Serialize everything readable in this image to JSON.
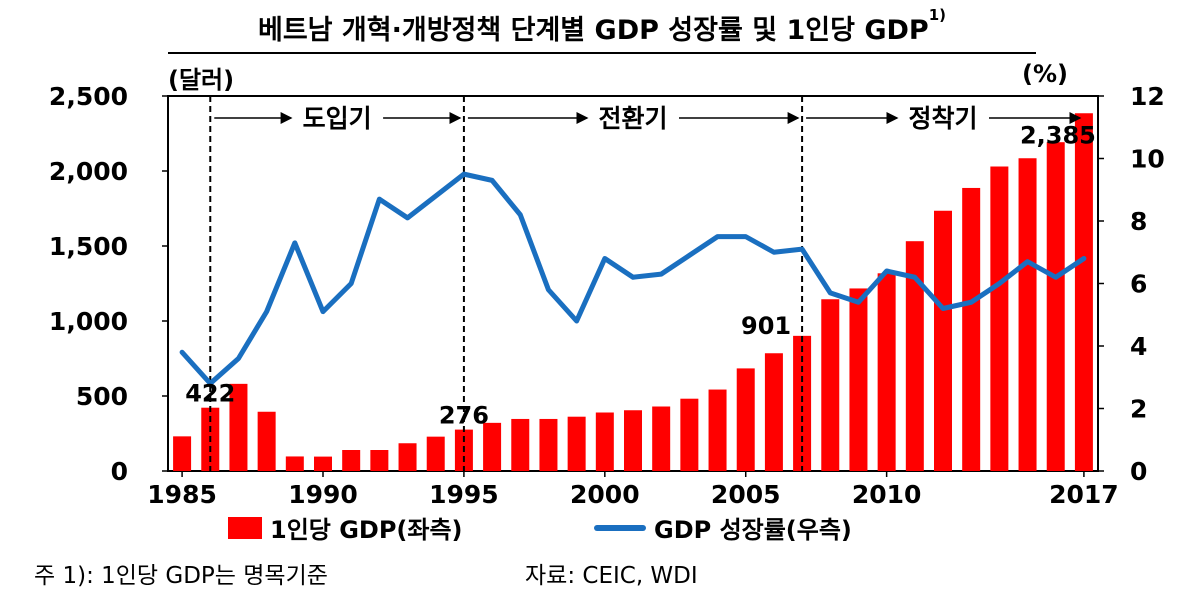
{
  "title": {
    "main": "베트남 개혁·개방정책 단계별 GDP 성장률 및 1인당 GDP",
    "superscript": "1)"
  },
  "units": {
    "left": "(달러)",
    "right": "(%)"
  },
  "note": "주 1): 1인당 GDP는 명목기준",
  "source": "자료: CEIC, WDI",
  "colors": {
    "bar": "#ff0000",
    "line": "#1a6fc0",
    "axis": "#000000"
  },
  "chart_data": {
    "type": "bar+line",
    "x": [
      1985,
      1986,
      1987,
      1988,
      1989,
      1990,
      1991,
      1992,
      1993,
      1994,
      1995,
      1996,
      1997,
      1998,
      1999,
      2000,
      2001,
      2002,
      2003,
      2004,
      2005,
      2006,
      2007,
      2008,
      2009,
      2010,
      2011,
      2012,
      2013,
      2014,
      2015,
      2016,
      2017
    ],
    "x_tick_labels": [
      "1985",
      "1990",
      "1995",
      "2000",
      "2005",
      "2010",
      "2017"
    ],
    "x_tick_years": [
      1985,
      1990,
      1995,
      2000,
      2005,
      2010,
      2017
    ],
    "y_left": {
      "range": [
        0,
        2500
      ],
      "ticks": [
        0,
        500,
        1000,
        1500,
        2000,
        2500
      ],
      "tick_labels": [
        "0",
        "500",
        "1,000",
        "1,500",
        "2,000",
        "2,500"
      ]
    },
    "y_right": {
      "range": [
        0,
        12
      ],
      "ticks": [
        0,
        2,
        4,
        6,
        8,
        10,
        12
      ],
      "tick_labels": [
        "0",
        "2",
        "4",
        "6",
        "8",
        "10",
        "12"
      ]
    },
    "series": [
      {
        "name": "1인당 GDP(좌측)",
        "type": "bar",
        "axis": "left",
        "values": [
          231,
          422,
          581,
          395,
          97,
          96,
          140,
          140,
          185,
          229,
          276,
          321,
          347,
          347,
          362,
          390,
          405,
          430,
          482,
          543,
          684,
          785,
          901,
          1145,
          1217,
          1318,
          1532,
          1735,
          1887,
          2030,
          2085,
          2192,
          2385
        ]
      },
      {
        "name": "GDP 성장률(우측)",
        "type": "line",
        "axis": "right",
        "values": [
          3.8,
          2.8,
          3.6,
          5.1,
          7.3,
          5.1,
          6.0,
          8.7,
          8.1,
          8.8,
          9.5,
          9.3,
          8.2,
          5.8,
          4.8,
          6.8,
          6.2,
          6.3,
          6.9,
          7.5,
          7.5,
          7.0,
          7.1,
          5.7,
          5.4,
          6.4,
          6.2,
          5.2,
          5.4,
          6.0,
          6.7,
          6.2,
          6.8
        ]
      }
    ],
    "data_labels": [
      {
        "year": 1986,
        "text": "422"
      },
      {
        "year": 1995,
        "text": "276"
      },
      {
        "year": 2007,
        "text": "901"
      },
      {
        "year": 2017,
        "text": "2,385"
      }
    ],
    "phases": [
      {
        "label": "도입기",
        "start": 1986,
        "end": 1995
      },
      {
        "label": "전환기",
        "start": 1995,
        "end": 2007
      },
      {
        "label": "정착기",
        "start": 2007,
        "end": 2017
      }
    ],
    "grid": false,
    "legend_position": "bottom"
  }
}
